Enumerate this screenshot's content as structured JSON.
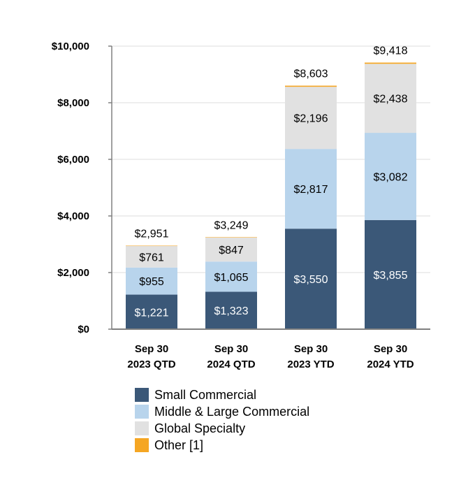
{
  "chart_data": {
    "type": "bar",
    "stacked": true,
    "categories": [
      [
        "Sep 30",
        "2023 QTD"
      ],
      [
        "Sep 30",
        "2024 QTD"
      ],
      [
        "Sep 30",
        "2023 YTD"
      ],
      [
        "Sep 30",
        "2024 YTD"
      ]
    ],
    "series": [
      {
        "name": "Small Commercial",
        "color": "#3b5878",
        "label_color": "#ffffff",
        "values": [
          1221,
          1323,
          3550,
          3855
        ]
      },
      {
        "name": "Middle & Large Commercial",
        "color": "#b8d4ec",
        "label_color": "#000000",
        "values": [
          955,
          1065,
          2817,
          3082
        ]
      },
      {
        "name": "Global Specialty",
        "color": "#e1e1e1",
        "label_color": "#000000",
        "values": [
          761,
          847,
          2196,
          2438
        ]
      },
      {
        "name": "Other [1]",
        "color": "#f5a623",
        "label_color": "#000000",
        "values": [
          14,
          14,
          40,
          43
        ]
      }
    ],
    "segment_labels": [
      [
        "$1,221",
        "$955",
        "$761"
      ],
      [
        "$1,323",
        "$1,065",
        "$847"
      ],
      [
        "$3,550",
        "$2,817",
        "$2,196"
      ],
      [
        "$3,855",
        "$3,082",
        "$2,438"
      ]
    ],
    "totals": [
      2951,
      3249,
      8603,
      9418
    ],
    "total_labels": [
      "$2,951",
      "$3,249",
      "$8,603",
      "$9,418"
    ],
    "yticks": [
      0,
      2000,
      4000,
      6000,
      8000,
      10000
    ],
    "ytick_labels": [
      "$0",
      "$2,000",
      "$4,000",
      "$6,000",
      "$8,000",
      "$10,000"
    ],
    "ylim": [
      0,
      10000
    ],
    "grid": true,
    "legend_position": "bottom"
  }
}
